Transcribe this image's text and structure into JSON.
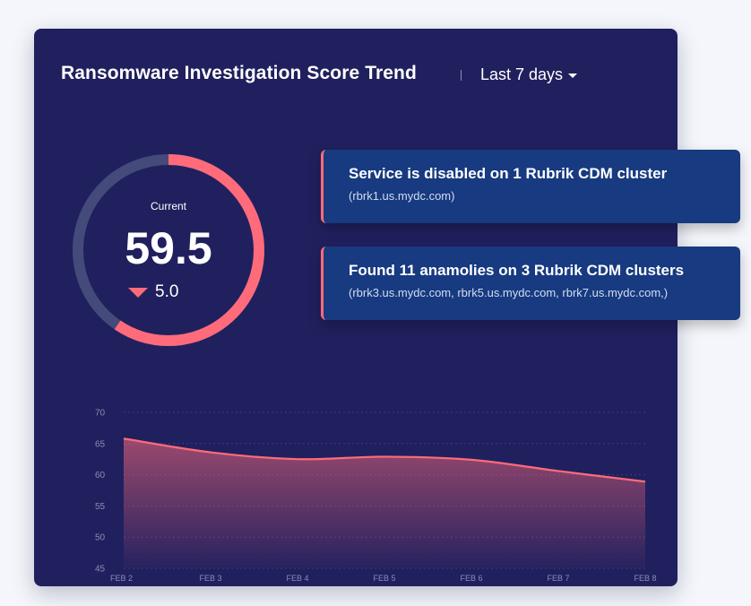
{
  "header": {
    "title": "Ransomware Investigation Score Trend",
    "range_label": "Last 7 days"
  },
  "gauge": {
    "label": "Current",
    "value": "59.5",
    "delta": "5.0",
    "score": 59.5,
    "max": 100
  },
  "alerts": [
    {
      "title": "Service is disabled on 1 Rubrik CDM cluster",
      "detail": "(rbrk1.us.mydc.com)"
    },
    {
      "title": "Found 11 anamolies on 3 Rubrik CDM clusters",
      "detail": "(rbrk3.us.mydc.com, rbrk5.us.mydc.com, rbrk7.us.mydc.com,)"
    }
  ],
  "colors": {
    "card_bg": "#20205e",
    "accent": "#ff6b7a",
    "gauge_track": "#444a7a",
    "alert_bg": "#173a80"
  },
  "chart_data": {
    "type": "area",
    "x": [
      "FEB 2",
      "FEB 3",
      "FEB 4",
      "FEB 5",
      "FEB 6",
      "FEB 7",
      "FEB 8"
    ],
    "y_ticks": [
      "70",
      "65",
      "60",
      "55",
      "50",
      "45"
    ],
    "ylim": [
      45,
      70
    ],
    "series": [
      {
        "values": [
          65.8,
          63.6,
          62.5,
          62.9,
          62.4,
          60.6,
          58.9
        ]
      }
    ],
    "grid": true,
    "legend": "none"
  }
}
